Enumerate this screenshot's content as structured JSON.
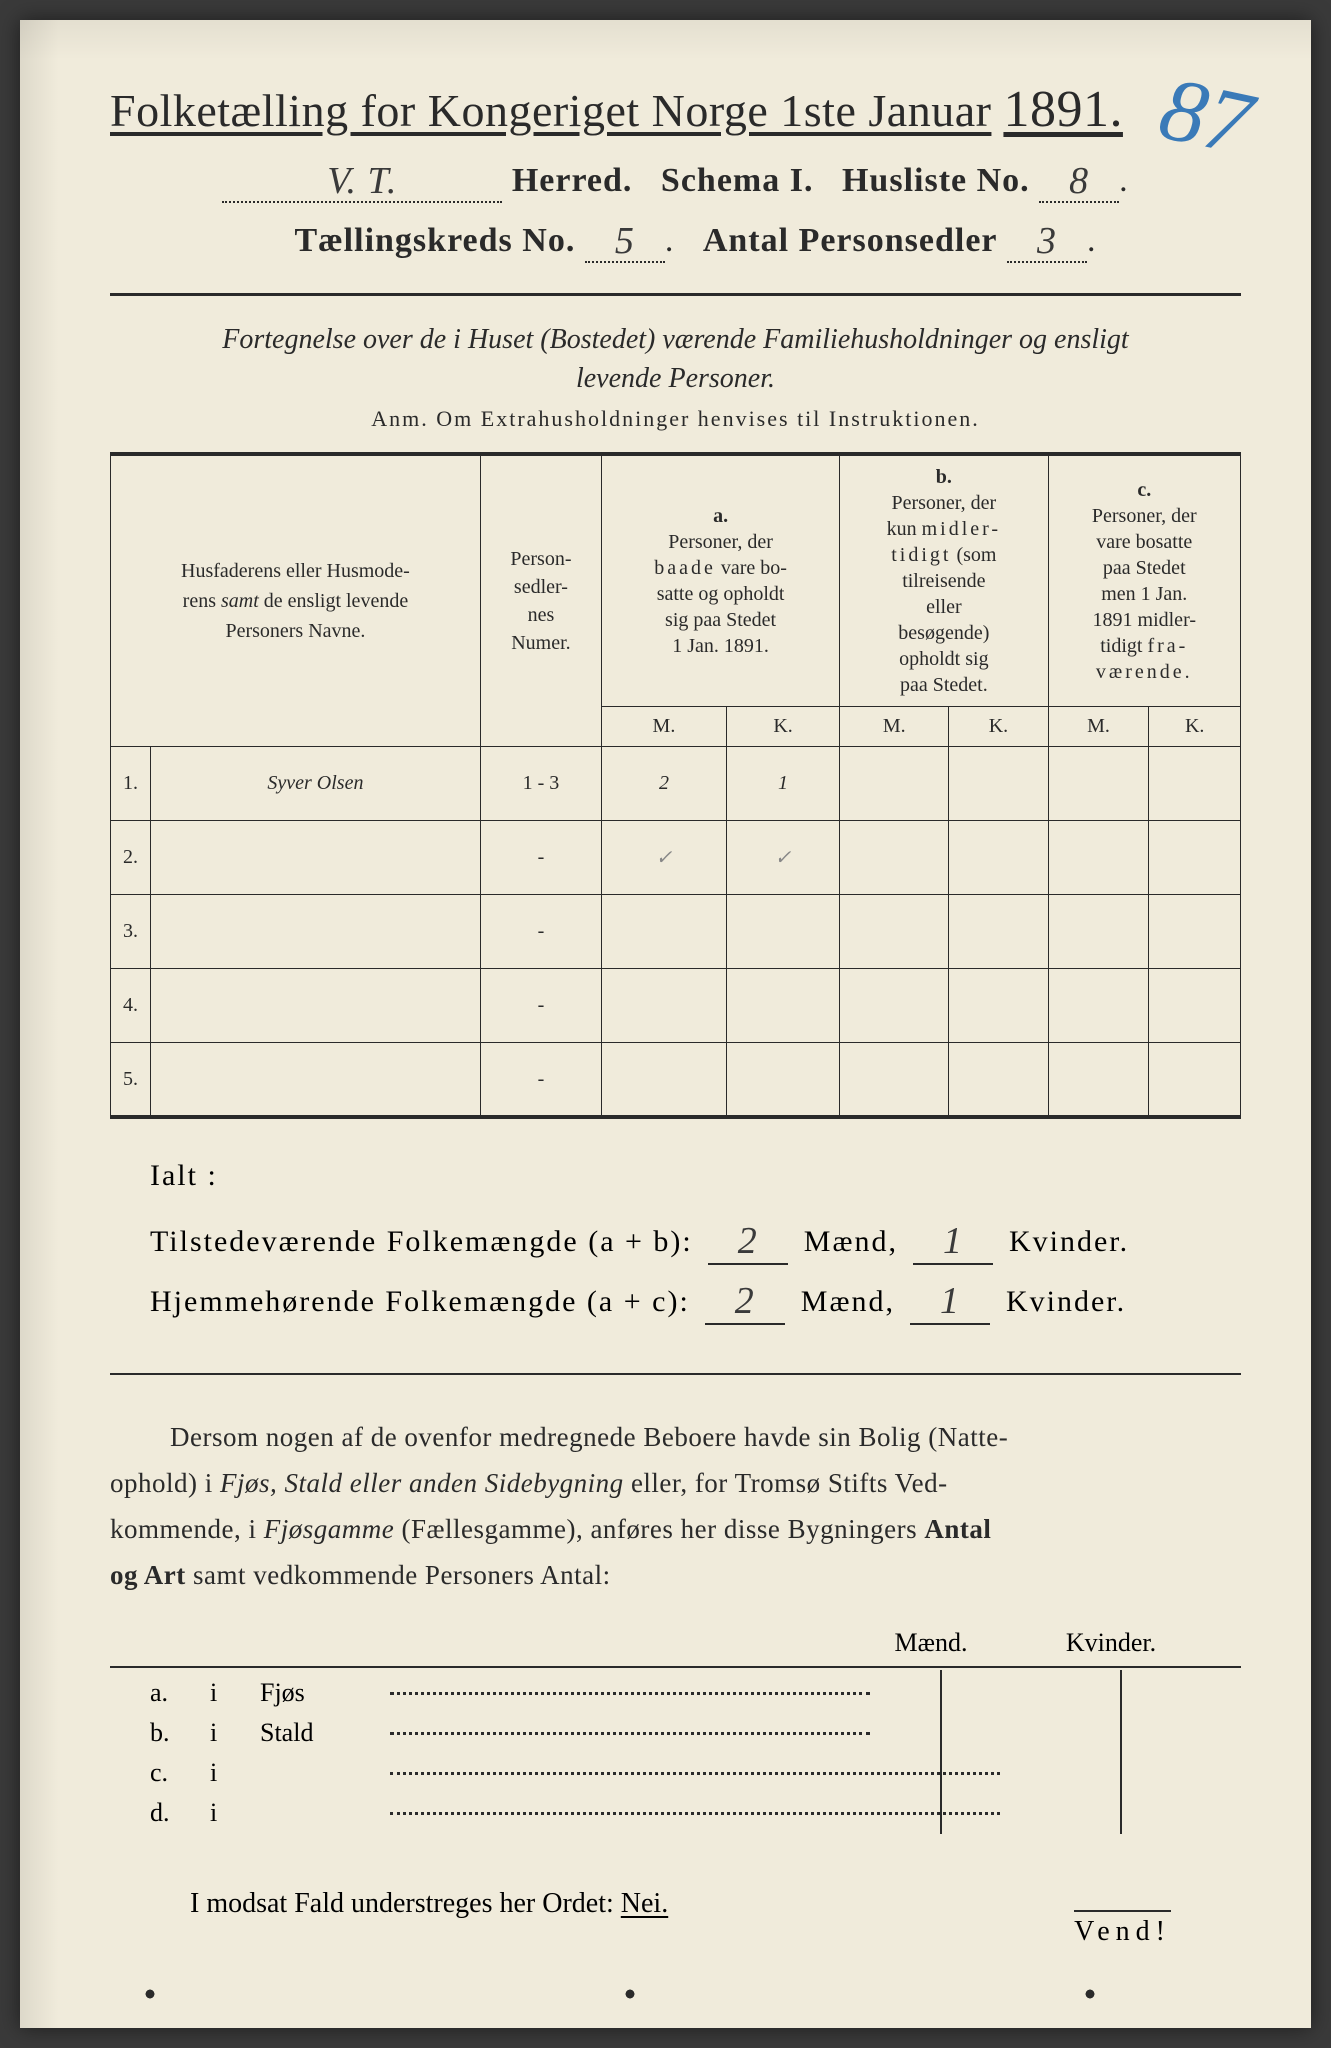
{
  "pencil_number": "87",
  "title": {
    "prefix": "Folketælling for Kongeriget Norge 1ste Januar",
    "year": "1891."
  },
  "header": {
    "herred_value": "V. T.",
    "herred_label": "Herred.",
    "schema_label": "Schema I.",
    "husliste_label": "Husliste No.",
    "husliste_value": "8",
    "kreds_label": "Tællingskreds No.",
    "kreds_value": "5",
    "antal_label": "Antal Personsedler",
    "antal_value": "3"
  },
  "subtitle": {
    "line1a": "Fortegnelse over de i Huset (Bostedet) værende Familiehusholdninger",
    "line1b": "og ensligt",
    "line2": "levende Personer."
  },
  "anm": "Anm.   Om Extrahusholdninger henvises til Instruktionen.",
  "columns": {
    "name": "Husfaderens eller Husmoderens samt de ensligt levende Personers Navne.",
    "numer": "Personsedlernes Numer.",
    "a_label": "a.",
    "a_text": "Personer, der baade vare bosatte og opholdt sig paa Stedet 1 Jan. 1891.",
    "b_label": "b.",
    "b_text": "Personer, der kun midlertidigt (som tilreisende eller besøgende) opholdt sig paa Stedet.",
    "c_label": "c.",
    "c_text": "Personer, der vare bosatte paa Stedet men 1 Jan. 1891 midlertidigt fraværende.",
    "m": "M.",
    "k": "K."
  },
  "rows": [
    {
      "n": "1.",
      "name": "Syver Olsen",
      "numer": "1 - 3",
      "a_m": "2",
      "a_k": "1",
      "b_m": "",
      "b_k": "",
      "c_m": "",
      "c_k": ""
    },
    {
      "n": "2.",
      "name": "",
      "numer": "-",
      "a_m": "✓",
      "a_k": "✓",
      "b_m": "",
      "b_k": "",
      "c_m": "",
      "c_k": ""
    },
    {
      "n": "3.",
      "name": "",
      "numer": "-",
      "a_m": "",
      "a_k": "",
      "b_m": "",
      "b_k": "",
      "c_m": "",
      "c_k": ""
    },
    {
      "n": "4.",
      "name": "",
      "numer": "-",
      "a_m": "",
      "a_k": "",
      "b_m": "",
      "b_k": "",
      "c_m": "",
      "c_k": ""
    },
    {
      "n": "5.",
      "name": "",
      "numer": "-",
      "a_m": "",
      "a_k": "",
      "b_m": "",
      "b_k": "",
      "c_m": "",
      "c_k": ""
    }
  ],
  "ialt": "Ialt :",
  "summary": {
    "tilstede_label": "Tilstedeværende Folkemængde (a + b):",
    "hjemme_label": "Hjemmehørende Folkemængde (a + c):",
    "maend": "Mænd,",
    "kvinder": "Kvinder.",
    "t_m": "2",
    "t_k": "1",
    "h_m": "2",
    "h_k": "1"
  },
  "para": "Dersom nogen af de ovenfor medregnede Beboere havde sin Bolig (Natteophold) i Fjøs, Stald eller anden Sidebygning eller, for Tromsø Stifts Vedkommende, i Fjøsgamme (Fællesgamme), anføres her disse Bygningers Antal og Art samt vedkommende Personers Antal:",
  "mk_header": {
    "m": "Mænd.",
    "k": "Kvinder."
  },
  "abcd": [
    {
      "l": "a.",
      "i": "i",
      "kind": "Fjøs"
    },
    {
      "l": "b.",
      "i": "i",
      "kind": "Stald"
    },
    {
      "l": "c.",
      "i": "i",
      "kind": ""
    },
    {
      "l": "d.",
      "i": "i",
      "kind": ""
    }
  ],
  "nei": {
    "pre": "I modsat Fald understreges her Ordet:",
    "word": "Nei."
  },
  "vend": "Vend!",
  "colors": {
    "paper": "#f0ebdb",
    "ink": "#2a2a2a",
    "pencil": "#3a7ab8"
  }
}
